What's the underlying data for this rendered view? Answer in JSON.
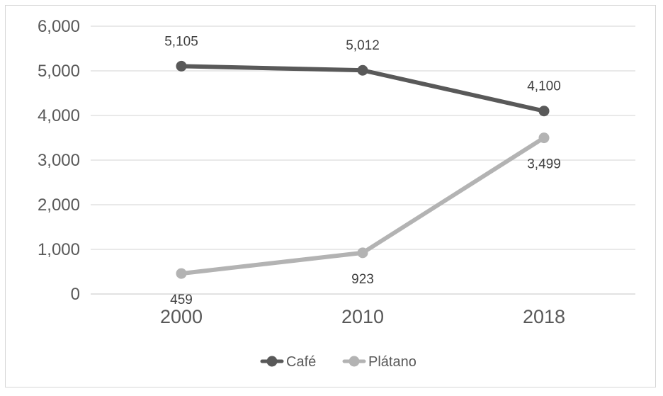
{
  "chart_data": {
    "type": "line",
    "title": "",
    "xlabel": "",
    "ylabel": "",
    "categories": [
      "2000",
      "2010",
      "2018"
    ],
    "ylim": [
      0,
      6000
    ],
    "yticks": [
      0,
      1000,
      2000,
      3000,
      4000,
      5000,
      6000
    ],
    "ytick_labels": [
      "0",
      "1,000",
      "2,000",
      "3,000",
      "4,000",
      "5,000",
      "6,000"
    ],
    "grid": true,
    "legend_position": "bottom",
    "series": [
      {
        "name": "Café",
        "color": "#595959",
        "values": [
          5105,
          5012,
          4100
        ],
        "labels": [
          "5,105",
          "5,012",
          "4,100"
        ],
        "label_position": "above"
      },
      {
        "name": "Plátano",
        "color": "#b3b3b3",
        "values": [
          459,
          923,
          3499
        ],
        "labels": [
          "459",
          "923",
          "3,499"
        ],
        "label_position": "below"
      }
    ]
  }
}
